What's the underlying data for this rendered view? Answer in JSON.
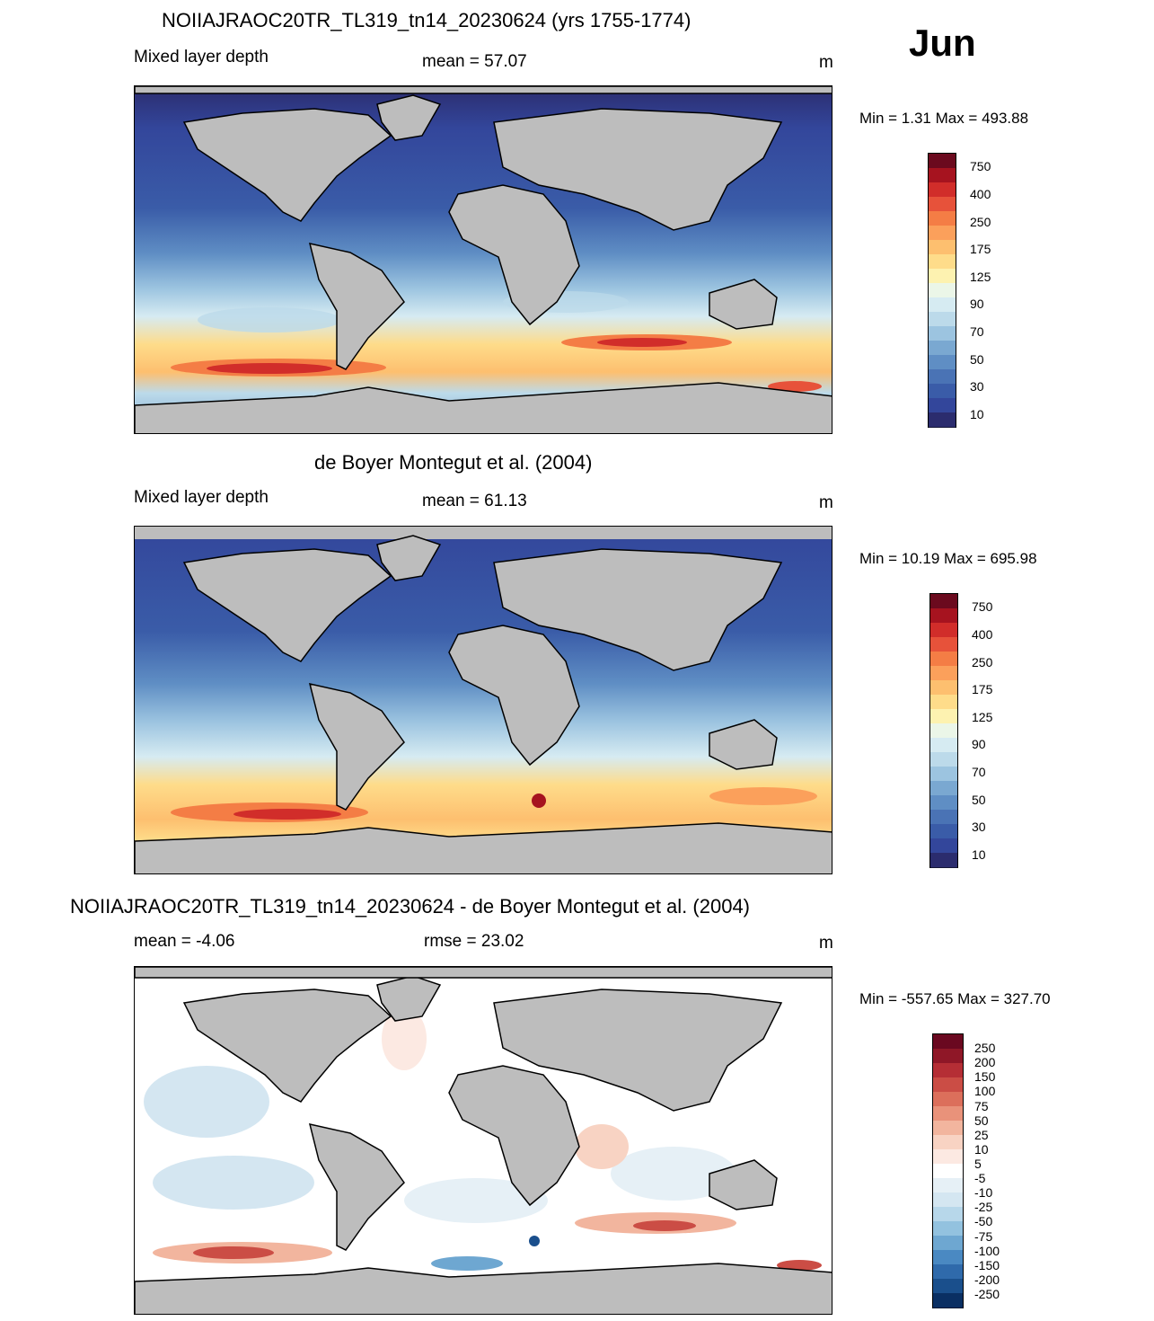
{
  "header": {
    "month": "Jun"
  },
  "colors": {
    "land": "#bdbdbd",
    "coastline": "#000000",
    "mld_scale": [
      "#2b2c6e",
      "#33469b",
      "#3a5ca8",
      "#4a73b5",
      "#5f8ec4",
      "#7aa8d1",
      "#9cc4e0",
      "#bcdaea",
      "#d6ebf2",
      "#ebf6e8",
      "#fdf2b0",
      "#fedc8a",
      "#fdbf6f",
      "#fba05b",
      "#f47d45",
      "#e7523a",
      "#d12d2a",
      "#a6131f",
      "#6b0a1e"
    ],
    "diff_scale": [
      "#0a2f63",
      "#1a4f8c",
      "#2f6aab",
      "#4a89c2",
      "#6ea7d1",
      "#93c2df",
      "#b7d7ea",
      "#d4e6f1",
      "#e6f0f6",
      "#ffffff",
      "#fce9e2",
      "#f8d3c3",
      "#f2b59e",
      "#e9927a",
      "#dc6f5b",
      "#cb4d45",
      "#b52e35",
      "#8f1727",
      "#6a0820"
    ]
  },
  "panels": [
    {
      "id": "model",
      "title": "NOIIAJRAOC20TR_TL319_tn14_20230624 (yrs 1755-1774)",
      "left_label": "Mixed layer depth",
      "center_label": "mean =  57.07",
      "units": "m",
      "minmax": "Min =    1.31 Max = 493.88",
      "colorbar_labels": [
        "750",
        "400",
        "250",
        "175",
        "125",
        "90",
        "70",
        "50",
        "30",
        "10"
      ]
    },
    {
      "id": "obs",
      "title": "de Boyer Montegut et al. (2004)",
      "left_label": "Mixed layer depth",
      "center_label": "mean =  61.13",
      "units": "m",
      "minmax": "Min =  10.19 Max = 695.98",
      "colorbar_labels": [
        "750",
        "400",
        "250",
        "175",
        "125",
        "90",
        "70",
        "50",
        "30",
        "10"
      ]
    },
    {
      "id": "diff",
      "title": "NOIIAJRAOC20TR_TL319_tn14_20230624 - de Boyer Montegut et al. (2004)",
      "left_label": "mean =  -4.06",
      "center_label": "rmse =  23.02",
      "units": "m",
      "minmax": "Min = -557.65 Max = 327.70",
      "colorbar_labels": [
        "250",
        "200",
        "150",
        "100",
        "75",
        "50",
        "25",
        "10",
        "5",
        "-5",
        "-10",
        "-25",
        "-50",
        "-75",
        "-100",
        "-150",
        "-200",
        "-250"
      ]
    }
  ]
}
